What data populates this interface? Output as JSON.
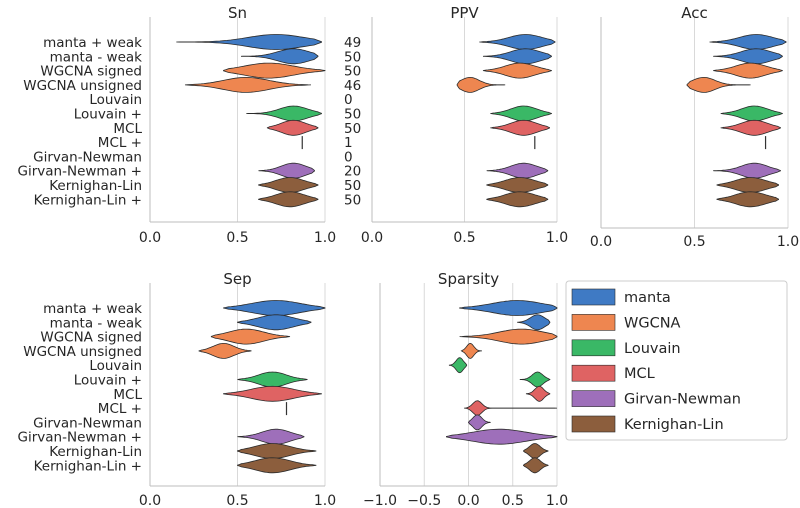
{
  "methods": [
    "manta + weak",
    "manta - weak",
    "WGCNA signed",
    "WGCNA unsigned",
    "Louvain",
    "Louvain +",
    "MCL",
    "MCL +",
    "Girvan-Newman",
    "Girvan-Newman +",
    "Kernighan-Lin",
    "Kernighan-Lin +"
  ],
  "colors": {
    "manta": "#3f7ac4",
    "WGCNA": "#ee8650",
    "Louvain": "#3ab866",
    "MCL": "#df6363",
    "Girvan-Newman": "#9e6fba",
    "Kernighan-Lin": "#8c5e3d"
  },
  "method_group": [
    "manta",
    "manta",
    "WGCNA",
    "WGCNA",
    "Louvain",
    "Louvain",
    "MCL",
    "MCL",
    "Girvan-Newman",
    "Girvan-Newman",
    "Kernighan-Lin",
    "Kernighan-Lin"
  ],
  "counts": [
    "49",
    "50",
    "50",
    "46",
    "0",
    "50",
    "50",
    "1",
    "0",
    "20",
    "50",
    "50"
  ],
  "legend": [
    "manta",
    "WGCNA",
    "Louvain",
    "MCL",
    "Girvan-Newman",
    "Kernighan-Lin"
  ],
  "chart_data": [
    {
      "type": "violin",
      "title": "Sn",
      "xlim": [
        0,
        1
      ],
      "xticks": [
        "0.0",
        "0.5",
        "1.0"
      ],
      "show_labels": true,
      "show_counts": true,
      "violins": [
        {
          "min": 0.15,
          "max": 0.98,
          "center": 0.72,
          "spread": 0.16
        },
        {
          "min": 0.52,
          "max": 0.96,
          "center": 0.82,
          "spread": 0.09
        },
        {
          "min": 0.42,
          "max": 1.0,
          "center": 0.68,
          "spread": 0.14
        },
        {
          "min": 0.2,
          "max": 0.92,
          "center": 0.55,
          "spread": 0.13
        },
        null,
        {
          "min": 0.55,
          "max": 0.98,
          "center": 0.82,
          "spread": 0.08
        },
        {
          "min": 0.67,
          "max": 0.96,
          "center": 0.82,
          "spread": 0.07
        },
        {
          "line": 0.87
        },
        null,
        {
          "min": 0.62,
          "max": 0.94,
          "center": 0.82,
          "spread": 0.07
        },
        {
          "min": 0.62,
          "max": 0.96,
          "center": 0.8,
          "spread": 0.08
        },
        {
          "min": 0.62,
          "max": 0.96,
          "center": 0.8,
          "spread": 0.08
        }
      ]
    },
    {
      "type": "violin",
      "title": "PPV",
      "xlim": [
        0,
        1
      ],
      "xticks": [
        "0.0",
        "0.5",
        "1.0"
      ],
      "show_labels": false,
      "show_counts": false,
      "violins": [
        {
          "min": 0.58,
          "max": 0.99,
          "center": 0.83,
          "spread": 0.09
        },
        {
          "min": 0.6,
          "max": 0.97,
          "center": 0.83,
          "spread": 0.08
        },
        {
          "min": 0.6,
          "max": 0.97,
          "center": 0.8,
          "spread": 0.08
        },
        {
          "min": 0.46,
          "max": 0.72,
          "center": 0.53,
          "spread": 0.05
        },
        null,
        {
          "min": 0.64,
          "max": 0.97,
          "center": 0.82,
          "spread": 0.07
        },
        {
          "min": 0.64,
          "max": 0.96,
          "center": 0.82,
          "spread": 0.07
        },
        {
          "line": 0.88
        },
        null,
        {
          "min": 0.62,
          "max": 0.95,
          "center": 0.82,
          "spread": 0.07
        },
        {
          "min": 0.62,
          "max": 0.95,
          "center": 0.8,
          "spread": 0.08
        },
        {
          "min": 0.62,
          "max": 0.95,
          "center": 0.8,
          "spread": 0.08
        }
      ]
    },
    {
      "type": "violin",
      "title": "Acc",
      "xlim": [
        0,
        1
      ],
      "xticks": [
        "0.0",
        "0.5",
        "1.0"
      ],
      "show_labels": false,
      "show_counts": false,
      "violins": [
        {
          "min": 0.58,
          "max": 0.99,
          "center": 0.83,
          "spread": 0.09
        },
        {
          "min": 0.6,
          "max": 0.97,
          "center": 0.83,
          "spread": 0.08
        },
        {
          "min": 0.6,
          "max": 0.97,
          "center": 0.8,
          "spread": 0.08
        },
        {
          "min": 0.46,
          "max": 0.8,
          "center": 0.55,
          "spread": 0.06
        },
        null,
        {
          "min": 0.64,
          "max": 0.97,
          "center": 0.82,
          "spread": 0.07
        },
        {
          "min": 0.64,
          "max": 0.96,
          "center": 0.82,
          "spread": 0.07
        },
        {
          "line": 0.88
        },
        null,
        {
          "min": 0.6,
          "max": 0.96,
          "center": 0.82,
          "spread": 0.07
        },
        {
          "min": 0.62,
          "max": 0.95,
          "center": 0.8,
          "spread": 0.08
        },
        {
          "min": 0.62,
          "max": 0.95,
          "center": 0.8,
          "spread": 0.08
        }
      ]
    },
    {
      "type": "violin",
      "title": "Sep",
      "xlim": [
        0,
        1
      ],
      "xticks": [
        "0.0",
        "0.5",
        "1.0"
      ],
      "show_labels": true,
      "show_counts": false,
      "violins": [
        {
          "min": 0.42,
          "max": 1.0,
          "center": 0.72,
          "spread": 0.14
        },
        {
          "min": 0.5,
          "max": 0.92,
          "center": 0.72,
          "spread": 0.1
        },
        {
          "min": 0.35,
          "max": 0.8,
          "center": 0.55,
          "spread": 0.1
        },
        {
          "min": 0.28,
          "max": 0.58,
          "center": 0.42,
          "spread": 0.06
        },
        null,
        {
          "min": 0.5,
          "max": 0.9,
          "center": 0.7,
          "spread": 0.08
        },
        {
          "min": 0.42,
          "max": 0.98,
          "center": 0.7,
          "spread": 0.12
        },
        {
          "line": 0.78
        },
        null,
        {
          "min": 0.5,
          "max": 0.88,
          "center": 0.72,
          "spread": 0.08
        },
        {
          "min": 0.5,
          "max": 0.95,
          "center": 0.7,
          "spread": 0.1
        },
        {
          "min": 0.5,
          "max": 0.95,
          "center": 0.7,
          "spread": 0.1
        }
      ]
    },
    {
      "type": "violin",
      "title": "Sparsity",
      "xlim": [
        -1,
        1
      ],
      "xticks": [
        "−1.0",
        "−0.5",
        "0.0",
        "0.5",
        "1.0"
      ],
      "show_labels": false,
      "show_counts": false,
      "violins": [
        {
          "min": -0.1,
          "max": 1.0,
          "center": 0.55,
          "spread": 0.28
        },
        {
          "min": 0.55,
          "max": 0.92,
          "center": 0.78,
          "spread": 0.08
        },
        {
          "min": -0.1,
          "max": 1.0,
          "center": 0.6,
          "spread": 0.25
        },
        {
          "min": -0.08,
          "max": 0.15,
          "center": 0.02,
          "spread": 0.04
        },
        {
          "min": -0.22,
          "max": -0.02,
          "center": -0.1,
          "spread": 0.04
        },
        {
          "min": 0.58,
          "max": 0.92,
          "center": 0.78,
          "spread": 0.06
        },
        {
          "min": 0.65,
          "max": 0.92,
          "center": 0.8,
          "spread": 0.05
        },
        {
          "min": -0.05,
          "max": 1.0,
          "center": 0.1,
          "spread": 0.05
        },
        {
          "min": 0.0,
          "max": 0.25,
          "center": 0.1,
          "spread": 0.05
        },
        {
          "min": -0.25,
          "max": 1.0,
          "center": 0.35,
          "spread": 0.3
        },
        {
          "min": 0.62,
          "max": 0.9,
          "center": 0.75,
          "spread": 0.06
        },
        {
          "min": 0.62,
          "max": 0.9,
          "center": 0.75,
          "spread": 0.06
        }
      ]
    }
  ]
}
